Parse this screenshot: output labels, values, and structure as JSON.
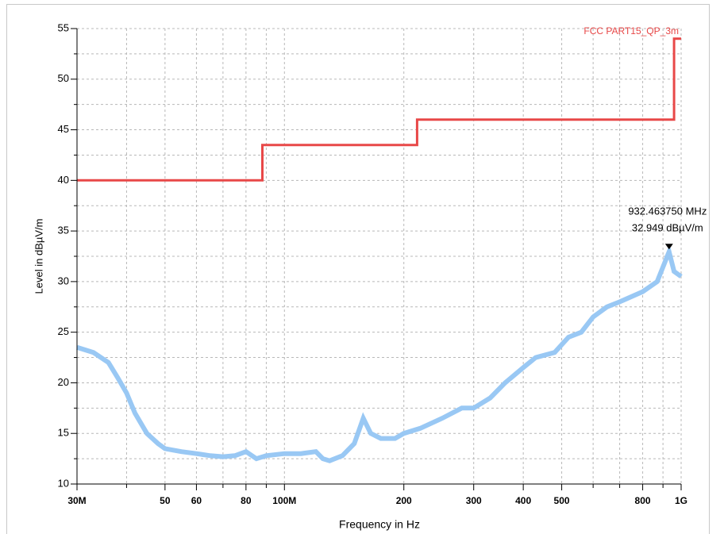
{
  "chart_data": {
    "type": "line",
    "xlabel": "Frequency in Hz",
    "ylabel": "Level in dBµV/m",
    "xscale": "log",
    "xlim": [
      30000000,
      1000000000
    ],
    "ylim": [
      10,
      55
    ],
    "xticks": [
      {
        "value": 30000000,
        "label": "30M"
      },
      {
        "value": 50000000,
        "label": "50"
      },
      {
        "value": 60000000,
        "label": "60"
      },
      {
        "value": 80000000,
        "label": "80"
      },
      {
        "value": 100000000,
        "label": "100M"
      },
      {
        "value": 200000000,
        "label": "200"
      },
      {
        "value": 300000000,
        "label": "300"
      },
      {
        "value": 400000000,
        "label": "400"
      },
      {
        "value": 500000000,
        "label": "500"
      },
      {
        "value": 800000000,
        "label": "800"
      },
      {
        "value": 1000000000,
        "label": "1G"
      }
    ],
    "xminorticks": [
      40000000,
      70000000,
      90000000,
      600000000,
      700000000,
      900000000
    ],
    "yticks": [
      10,
      15,
      20,
      25,
      30,
      35,
      40,
      45,
      50,
      55
    ],
    "yminorticks": [
      12.5,
      17.5,
      22.5,
      27.5,
      32.5,
      37.5,
      42.5,
      47.5,
      52.5
    ],
    "grid": true,
    "series": [
      {
        "name": "FCC PART15_QP_3m",
        "color": "#e84848",
        "width": 3,
        "x": [
          30000000,
          88000000,
          88000000,
          216000000,
          216000000,
          960000000,
          960000000,
          1000000000
        ],
        "values": [
          40,
          40,
          43.5,
          43.5,
          46,
          46,
          54,
          54
        ]
      },
      {
        "color": "#99c8f4",
        "width": 6,
        "x": [
          30000000,
          33000000,
          36000000,
          38000000,
          40000000,
          42000000,
          45000000,
          48000000,
          50000000,
          55000000,
          60000000,
          65000000,
          70000000,
          75000000,
          80000000,
          85000000,
          90000000,
          100000000,
          110000000,
          120000000,
          125000000,
          130000000,
          140000000,
          150000000,
          158000000,
          165000000,
          175000000,
          190000000,
          200000000,
          220000000,
          250000000,
          280000000,
          300000000,
          330000000,
          360000000,
          400000000,
          430000000,
          480000000,
          520000000,
          560000000,
          600000000,
          650000000,
          700000000,
          800000000,
          870000000,
          932463750,
          960000000,
          1000000000
        ],
        "values": [
          23.5,
          23,
          22,
          20.5,
          19,
          17,
          15,
          14,
          13.5,
          13.2,
          13,
          12.8,
          12.7,
          12.8,
          13.2,
          12.5,
          12.8,
          13,
          13,
          13.2,
          12.5,
          12.3,
          12.8,
          14,
          16.5,
          15,
          14.5,
          14.5,
          15,
          15.5,
          16.5,
          17.5,
          17.5,
          18.5,
          20,
          21.5,
          22.5,
          23,
          24.5,
          25,
          26.5,
          27.5,
          28,
          29,
          30,
          32.949,
          31,
          30.5
        ]
      }
    ],
    "marker": {
      "x": 932463750,
      "y": 32.949,
      "labels": [
        "932.463750 MHz",
        "32.949 dBµV/m"
      ]
    }
  }
}
